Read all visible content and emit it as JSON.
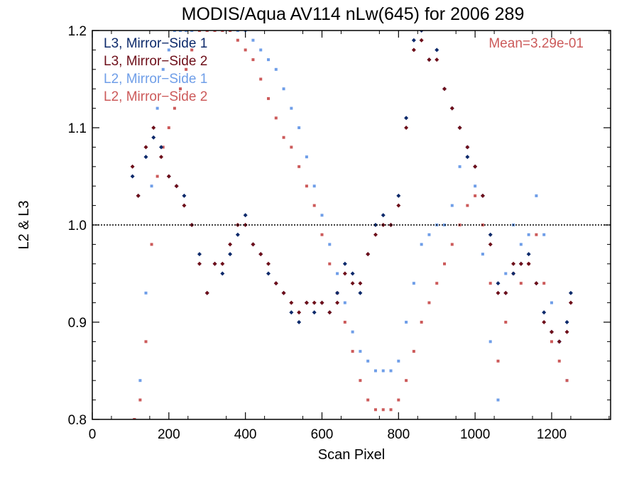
{
  "chart_data": {
    "type": "scatter",
    "title": "MODIS/Aqua AV114 nLw(645) for 2006 289",
    "xlabel": "Scan Pixel",
    "ylabel": "L2 & L3",
    "xlim": [
      0,
      1354
    ],
    "ylim": [
      0.8,
      1.2
    ],
    "xticks": [
      0,
      200,
      400,
      600,
      800,
      1000,
      1200
    ],
    "xtick_labels": [
      "0",
      "200",
      "400",
      "600",
      "800",
      "1000",
      "1200"
    ],
    "yticks": [
      0.8,
      0.9,
      1.0,
      1.1,
      1.2
    ],
    "ytick_labels": [
      "0.8",
      "0.9",
      "1.0",
      "1.1",
      "1.2"
    ],
    "reference_line": 1.0,
    "annotation": "Mean=3.29e-01",
    "legend_position": "top-left",
    "series": [
      {
        "name": "L3, Mirror−Side 1",
        "color": "#0d2a6b",
        "x": [
          105,
          120,
          140,
          160,
          180,
          200,
          220,
          240,
          260,
          280,
          300,
          320,
          340,
          360,
          380,
          400,
          420,
          440,
          460,
          480,
          500,
          520,
          540,
          560,
          580,
          600,
          620,
          640,
          660,
          680,
          700,
          720,
          740,
          760,
          780,
          800,
          820,
          840,
          860,
          880,
          900,
          920,
          940,
          960,
          980,
          1000,
          1020,
          1040,
          1060,
          1080,
          1100,
          1120,
          1140,
          1160,
          1180,
          1200,
          1220,
          1240,
          1250
        ],
        "y": [
          1.05,
          1.03,
          1.07,
          1.09,
          1.08,
          1.05,
          1.04,
          1.03,
          1.0,
          0.97,
          0.93,
          0.96,
          0.95,
          0.97,
          0.99,
          1.01,
          0.98,
          0.97,
          0.95,
          0.94,
          0.93,
          0.91,
          0.9,
          0.92,
          0.91,
          0.92,
          0.91,
          0.93,
          0.96,
          0.95,
          0.93,
          0.97,
          1.0,
          1.01,
          1.0,
          1.03,
          1.11,
          1.19,
          1.2,
          1.17,
          1.18,
          1.14,
          1.12,
          1.1,
          1.07,
          1.06,
          1.03,
          0.99,
          0.94,
          0.93,
          0.95,
          0.96,
          0.97,
          0.94,
          0.91,
          0.89,
          0.88,
          0.9,
          0.93
        ]
      },
      {
        "name": "L3, Mirror−Side 2",
        "color": "#6e0f1a",
        "x": [
          105,
          120,
          140,
          160,
          180,
          200,
          220,
          240,
          260,
          280,
          300,
          320,
          340,
          360,
          380,
          400,
          420,
          440,
          460,
          480,
          500,
          520,
          540,
          560,
          580,
          600,
          620,
          640,
          660,
          680,
          700,
          720,
          740,
          760,
          780,
          800,
          820,
          840,
          860,
          880,
          900,
          920,
          940,
          960,
          980,
          1000,
          1020,
          1040,
          1060,
          1080,
          1100,
          1120,
          1140,
          1160,
          1180,
          1200,
          1220,
          1240,
          1250
        ],
        "y": [
          1.06,
          1.03,
          1.08,
          1.1,
          1.07,
          1.05,
          1.04,
          1.02,
          1.0,
          0.96,
          0.93,
          0.96,
          0.96,
          0.98,
          1.0,
          1.0,
          0.98,
          0.97,
          0.96,
          0.94,
          0.93,
          0.92,
          0.91,
          0.92,
          0.92,
          0.92,
          0.91,
          0.92,
          0.95,
          0.94,
          0.94,
          0.97,
          0.99,
          1.0,
          1.0,
          1.02,
          1.1,
          1.18,
          1.19,
          1.17,
          1.17,
          1.14,
          1.12,
          1.1,
          1.08,
          1.06,
          1.03,
          0.98,
          0.93,
          0.93,
          0.96,
          0.96,
          0.96,
          0.94,
          0.9,
          0.89,
          0.88,
          0.89,
          0.92
        ]
      },
      {
        "name": "L2, Mirror−Side 1",
        "color": "#6f9ee8",
        "x": [
          110,
          125,
          140,
          155,
          170,
          185,
          200,
          215,
          230,
          245,
          260,
          280,
          300,
          320,
          340,
          360,
          380,
          400,
          420,
          440,
          460,
          480,
          500,
          520,
          540,
          560,
          580,
          600,
          620,
          640,
          660,
          680,
          700,
          720,
          740,
          760,
          780,
          800,
          820,
          840,
          860,
          880,
          900,
          920,
          940,
          960,
          980,
          1000,
          1020,
          1040,
          1060,
          1080,
          1100,
          1120,
          1140,
          1160,
          1180,
          1200,
          1220,
          1240
        ],
        "y": [
          0.8,
          0.84,
          0.93,
          1.04,
          1.12,
          1.16,
          1.18,
          1.2,
          1.2,
          1.2,
          1.2,
          1.2,
          1.2,
          1.2,
          1.2,
          1.2,
          1.2,
          1.2,
          1.19,
          1.18,
          1.17,
          1.16,
          1.14,
          1.12,
          1.1,
          1.07,
          1.04,
          1.01,
          0.98,
          0.95,
          0.92,
          0.89,
          0.87,
          0.86,
          0.85,
          0.85,
          0.85,
          0.86,
          0.9,
          0.94,
          0.98,
          0.99,
          1.0,
          1.0,
          1.02,
          1.06,
          1.08,
          1.04,
          0.97,
          0.88,
          0.82,
          0.95,
          1.0,
          0.98,
          0.99,
          1.03,
          0.99,
          0.92,
          0.88,
          0.84
        ]
      },
      {
        "name": "L2, Mirror−Side 2",
        "color": "#cc5a5a",
        "x": [
          110,
          125,
          140,
          155,
          170,
          185,
          200,
          215,
          230,
          245,
          260,
          280,
          300,
          320,
          340,
          360,
          380,
          400,
          420,
          440,
          460,
          480,
          500,
          520,
          540,
          560,
          580,
          600,
          620,
          640,
          660,
          680,
          700,
          720,
          740,
          760,
          780,
          800,
          820,
          840,
          860,
          880,
          900,
          920,
          940,
          960,
          980,
          1000,
          1020,
          1040,
          1060,
          1080,
          1100,
          1120,
          1140,
          1160,
          1180,
          1200,
          1220,
          1240
        ],
        "y": [
          0.8,
          0.82,
          0.88,
          0.98,
          1.05,
          1.08,
          1.1,
          1.12,
          1.14,
          1.16,
          1.18,
          1.2,
          1.2,
          1.2,
          1.2,
          1.2,
          1.19,
          1.18,
          1.17,
          1.15,
          1.13,
          1.11,
          1.09,
          1.08,
          1.06,
          1.04,
          1.02,
          0.99,
          0.96,
          0.93,
          0.9,
          0.87,
          0.84,
          0.82,
          0.81,
          0.81,
          0.81,
          0.82,
          0.84,
          0.87,
          0.9,
          0.92,
          0.94,
          0.96,
          0.98,
          1.0,
          1.02,
          1.03,
          1.0,
          0.94,
          0.86,
          0.9,
          0.95,
          0.94,
          0.96,
          0.99,
          0.94,
          0.88,
          0.86,
          0.84
        ]
      }
    ]
  }
}
